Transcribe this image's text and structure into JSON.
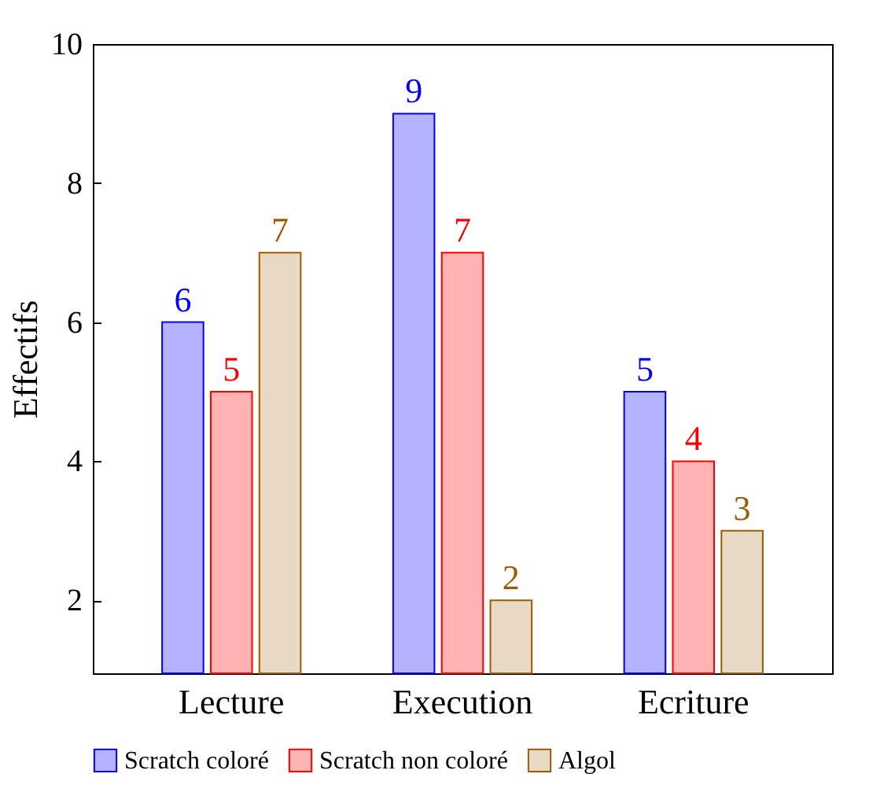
{
  "chart_data": {
    "type": "bar",
    "ylabel": "Effectifs",
    "categories": [
      "Lecture",
      "Execution",
      "Ecriture"
    ],
    "series": [
      {
        "name": "Scratch coloré",
        "color": "#b3b3ff",
        "values": [
          6,
          9,
          5
        ]
      },
      {
        "name": "Scratch non coloré",
        "color": "#ffb3b3",
        "values": [
          5,
          7,
          4
        ]
      },
      {
        "name": "Algol",
        "color": "#e8d9c4",
        "values": [
          7,
          2,
          3
        ]
      }
    ],
    "ylim": [
      0.95,
      10
    ],
    "yticks": [
      2,
      4,
      6,
      8,
      10
    ],
    "data_labels": true,
    "legend": "bottom",
    "grid": false
  }
}
